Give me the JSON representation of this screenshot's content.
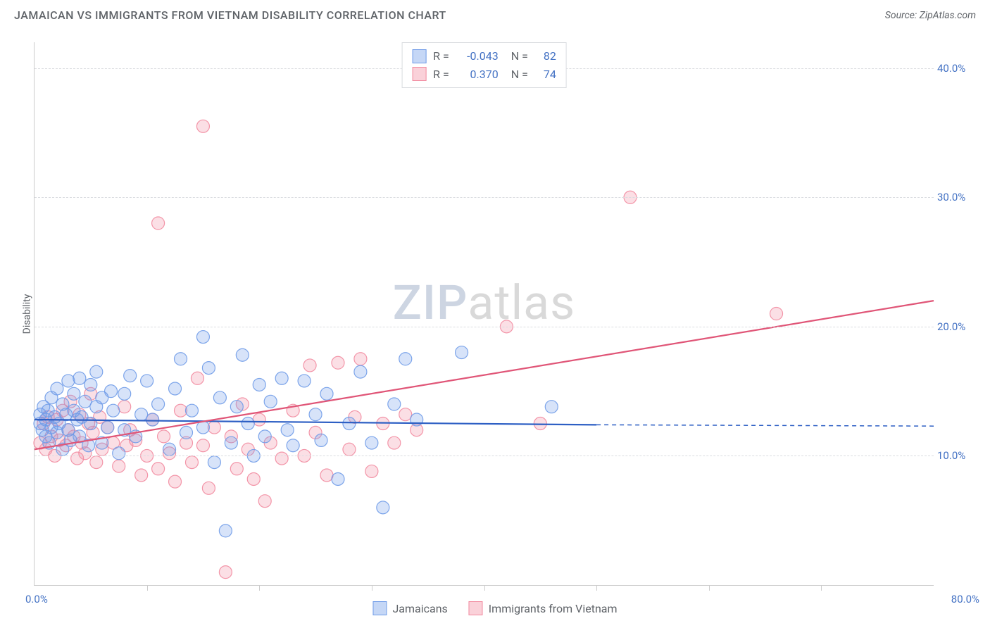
{
  "title": "JAMAICAN VS IMMIGRANTS FROM VIETNAM DISABILITY CORRELATION CHART",
  "source_label": "Source: ",
  "source_name": "ZipAtlas.com",
  "ylabel": "Disability",
  "watermark_a": "ZIP",
  "watermark_b": "atlas",
  "chart": {
    "type": "scatter",
    "xlim": [
      0,
      80
    ],
    "ylim": [
      0,
      42
    ],
    "yticks": [
      10,
      20,
      30,
      40
    ],
    "ytick_labels": [
      "10.0%",
      "20.0%",
      "30.0%",
      "40.0%"
    ],
    "xticks": [
      10,
      20,
      30,
      40,
      50,
      60,
      70
    ],
    "x_origin_label": "0.0%",
    "x_max_label": "80.0%",
    "grid_color": "#dadce0",
    "axis_color": "#cccccc",
    "background": "#ffffff",
    "marker_radius": 9,
    "marker_fill_opacity": 0.28,
    "marker_stroke_opacity": 0.9,
    "marker_stroke_width": 1.2,
    "line_width": 2.2,
    "series": [
      {
        "name": "Jamaicans",
        "color": "#6f9be8",
        "line_color": "#2d5fc4",
        "R": "-0.043",
        "N": "82",
        "trend": {
          "x1": 0,
          "y1": 12.8,
          "x2": 50,
          "y2": 12.4,
          "dash_from_x": 50,
          "dash_to_x": 80,
          "dash_y": 12.3
        },
        "points": [
          [
            0.5,
            12.5
          ],
          [
            0.5,
            13.2
          ],
          [
            0.7,
            12.0
          ],
          [
            0.8,
            13.8
          ],
          [
            1.0,
            11.5
          ],
          [
            1.0,
            12.8
          ],
          [
            1.2,
            13.5
          ],
          [
            1.3,
            11.0
          ],
          [
            1.5,
            12.2
          ],
          [
            1.5,
            14.5
          ],
          [
            1.8,
            13.0
          ],
          [
            2.0,
            11.8
          ],
          [
            2.0,
            15.2
          ],
          [
            2.2,
            12.5
          ],
          [
            2.5,
            14.0
          ],
          [
            2.5,
            10.5
          ],
          [
            2.8,
            13.2
          ],
          [
            3.0,
            15.8
          ],
          [
            3.0,
            12.0
          ],
          [
            3.2,
            11.2
          ],
          [
            3.5,
            14.8
          ],
          [
            3.5,
            13.5
          ],
          [
            3.8,
            12.8
          ],
          [
            4.0,
            16.0
          ],
          [
            4.0,
            11.5
          ],
          [
            4.2,
            13.0
          ],
          [
            4.5,
            14.2
          ],
          [
            4.8,
            10.8
          ],
          [
            5.0,
            15.5
          ],
          [
            5.0,
            12.5
          ],
          [
            5.5,
            13.8
          ],
          [
            5.5,
            16.5
          ],
          [
            6.0,
            11.0
          ],
          [
            6.0,
            14.5
          ],
          [
            6.5,
            12.2
          ],
          [
            6.8,
            15.0
          ],
          [
            7.0,
            13.5
          ],
          [
            7.5,
            10.2
          ],
          [
            8.0,
            14.8
          ],
          [
            8.0,
            12.0
          ],
          [
            8.5,
            16.2
          ],
          [
            9.0,
            11.5
          ],
          [
            9.5,
            13.2
          ],
          [
            10.0,
            15.8
          ],
          [
            10.5,
            12.8
          ],
          [
            11.0,
            14.0
          ],
          [
            12.0,
            10.5
          ],
          [
            12.5,
            15.2
          ],
          [
            13.0,
            17.5
          ],
          [
            13.5,
            11.8
          ],
          [
            14.0,
            13.5
          ],
          [
            15.0,
            12.2
          ],
          [
            15.0,
            19.2
          ],
          [
            15.5,
            16.8
          ],
          [
            16.0,
            9.5
          ],
          [
            16.5,
            14.5
          ],
          [
            17.0,
            4.2
          ],
          [
            17.5,
            11.0
          ],
          [
            18.0,
            13.8
          ],
          [
            18.5,
            17.8
          ],
          [
            19.0,
            12.5
          ],
          [
            19.5,
            10.0
          ],
          [
            20.0,
            15.5
          ],
          [
            20.5,
            11.5
          ],
          [
            21.0,
            14.2
          ],
          [
            22.0,
            16.0
          ],
          [
            22.5,
            12.0
          ],
          [
            23.0,
            10.8
          ],
          [
            24.0,
            15.8
          ],
          [
            25.0,
            13.2
          ],
          [
            25.5,
            11.2
          ],
          [
            26.0,
            14.8
          ],
          [
            27.0,
            8.2
          ],
          [
            28.0,
            12.5
          ],
          [
            29.0,
            16.5
          ],
          [
            30.0,
            11.0
          ],
          [
            31.0,
            6.0
          ],
          [
            32.0,
            14.0
          ],
          [
            33.0,
            17.5
          ],
          [
            34.0,
            12.8
          ],
          [
            38.0,
            18.0
          ],
          [
            46.0,
            13.8
          ]
        ]
      },
      {
        "name": "Immigrants from Vietnam",
        "color": "#f28ba0",
        "line_color": "#e05577",
        "R": "0.370",
        "N": "74",
        "trend": {
          "x1": 0,
          "y1": 10.5,
          "x2": 80,
          "y2": 22.0
        },
        "points": [
          [
            0.5,
            11.0
          ],
          [
            0.8,
            12.5
          ],
          [
            1.0,
            10.5
          ],
          [
            1.2,
            13.0
          ],
          [
            1.5,
            11.5
          ],
          [
            1.8,
            10.0
          ],
          [
            2.0,
            12.8
          ],
          [
            2.2,
            11.2
          ],
          [
            2.5,
            13.5
          ],
          [
            2.8,
            10.8
          ],
          [
            3.0,
            12.0
          ],
          [
            3.2,
            14.2
          ],
          [
            3.5,
            11.5
          ],
          [
            3.8,
            9.8
          ],
          [
            4.0,
            13.2
          ],
          [
            4.2,
            11.0
          ],
          [
            4.5,
            10.2
          ],
          [
            4.8,
            12.5
          ],
          [
            5.0,
            14.8
          ],
          [
            5.2,
            11.8
          ],
          [
            5.5,
            9.5
          ],
          [
            5.8,
            13.0
          ],
          [
            6.0,
            10.5
          ],
          [
            6.5,
            12.2
          ],
          [
            7.0,
            11.0
          ],
          [
            7.5,
            9.2
          ],
          [
            8.0,
            13.8
          ],
          [
            8.2,
            10.8
          ],
          [
            8.5,
            12.0
          ],
          [
            9.0,
            11.2
          ],
          [
            9.5,
            8.5
          ],
          [
            10.0,
            10.0
          ],
          [
            10.5,
            12.8
          ],
          [
            11.0,
            9.0
          ],
          [
            11.0,
            28.0
          ],
          [
            11.5,
            11.5
          ],
          [
            12.0,
            10.2
          ],
          [
            12.5,
            8.0
          ],
          [
            13.0,
            13.5
          ],
          [
            13.5,
            11.0
          ],
          [
            14.0,
            9.5
          ],
          [
            14.5,
            16.0
          ],
          [
            15.0,
            35.5
          ],
          [
            15.0,
            10.8
          ],
          [
            15.5,
            7.5
          ],
          [
            16.0,
            12.2
          ],
          [
            17.0,
            1.0
          ],
          [
            17.5,
            11.5
          ],
          [
            18.0,
            9.0
          ],
          [
            18.5,
            14.0
          ],
          [
            19.0,
            10.5
          ],
          [
            19.5,
            8.2
          ],
          [
            20.0,
            12.8
          ],
          [
            20.5,
            6.5
          ],
          [
            21.0,
            11.0
          ],
          [
            22.0,
            9.8
          ],
          [
            23.0,
            13.5
          ],
          [
            24.0,
            10.0
          ],
          [
            24.5,
            17.0
          ],
          [
            25.0,
            11.8
          ],
          [
            26.0,
            8.5
          ],
          [
            27.0,
            17.2
          ],
          [
            28.0,
            10.5
          ],
          [
            28.5,
            13.0
          ],
          [
            29.0,
            17.5
          ],
          [
            30.0,
            8.8
          ],
          [
            31.0,
            12.5
          ],
          [
            32.0,
            11.0
          ],
          [
            33.0,
            13.2
          ],
          [
            34.0,
            12.0
          ],
          [
            42.0,
            20.0
          ],
          [
            45.0,
            12.5
          ],
          [
            53.0,
            30.0
          ],
          [
            66.0,
            21.0
          ]
        ]
      }
    ]
  },
  "stats_box": {
    "rows": [
      {
        "swatch_fill": "rgba(111,155,232,0.4)",
        "swatch_border": "#6f9be8",
        "r_label": "R =",
        "r_val": "-0.043",
        "n_label": "N =",
        "n_val": "82"
      },
      {
        "swatch_fill": "rgba(242,139,160,0.4)",
        "swatch_border": "#f28ba0",
        "r_label": "R =",
        "r_val": "0.370",
        "n_label": "N =",
        "n_val": "74"
      }
    ]
  },
  "legend": [
    {
      "swatch_fill": "rgba(111,155,232,0.4)",
      "swatch_border": "#6f9be8",
      "label": "Jamaicans"
    },
    {
      "swatch_fill": "rgba(242,139,160,0.4)",
      "swatch_border": "#f28ba0",
      "label": "Immigrants from Vietnam"
    }
  ]
}
